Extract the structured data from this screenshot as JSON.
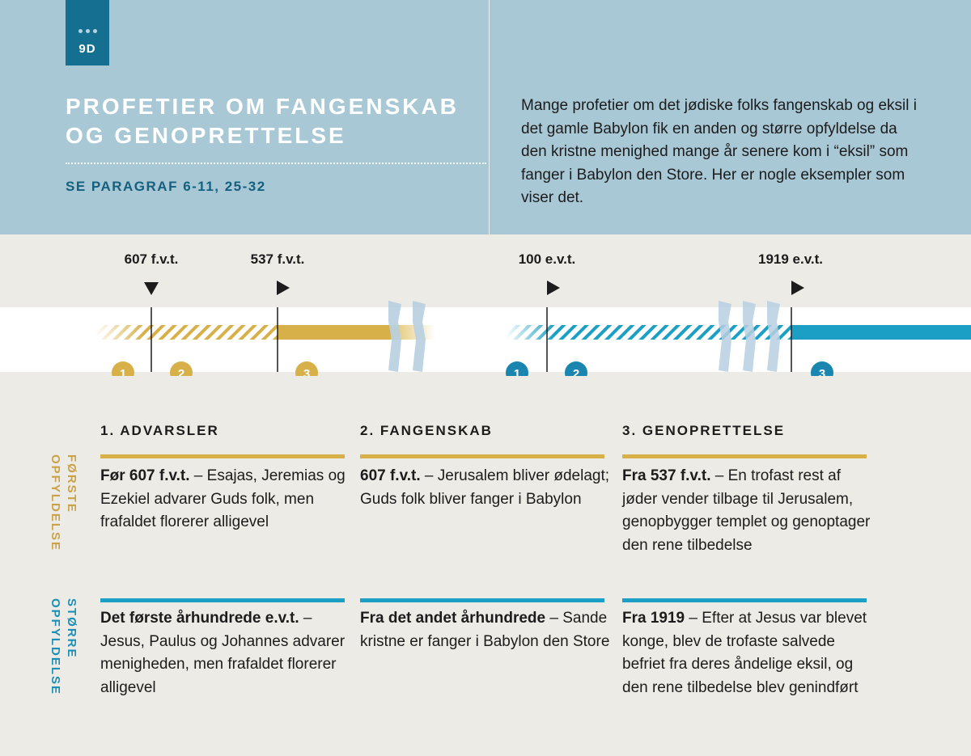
{
  "tag": {
    "label": "9D"
  },
  "title": "PROFETIER OM FANGENSKAB OG GENOPRETTELSE",
  "subtitle": "SE PARAGRAF 6-11, 25-32",
  "intro": "Mange profetier om det jødiske folks fangenskab og eksil i det gamle Babylon fik en anden og større opfyldelse da den kristne menighed mange år senere kom i “eksil” som fanger i Babylon den Store. Her er nogle eksempler som viser det.",
  "colors": {
    "gold": "#d8b04a",
    "blue": "#1c9fc4",
    "header_bg": "#a9c8d6",
    "tag_bg": "#146f91"
  },
  "timeline": {
    "dates": [
      "607 f.v.t.",
      "537 f.v.t.",
      "100 e.v.t.",
      "1919 e.v.t."
    ],
    "markers_first": [
      "1",
      "2",
      "3"
    ],
    "markers_second": [
      "1",
      "2",
      "3"
    ]
  },
  "columns": [
    "1. ADVARSLER",
    "2. FANGENSKAB",
    "3. GENOPRETTELSE"
  ],
  "rows": [
    {
      "label": "FØRSTE OPFYLDELSE",
      "cells": [
        {
          "bold": "Før 607 f.v.t.",
          "text": " – Esajas, Jeremias og Ezekiel advarer Guds folk, men frafaldet florerer alligevel"
        },
        {
          "bold": "607 f.v.t.",
          "text": " – Jerusalem bliver ødelagt; Guds folk bliver fanger i Babylon"
        },
        {
          "bold": "Fra 537 f.v.t.",
          "text": " – En trofast rest af jøder vender tilbage til Jerusalem, genopbygger templet og genoptager den rene tilbedelse"
        }
      ]
    },
    {
      "label": "STØRRE OPFYLDELSE",
      "cells": [
        {
          "bold": "Det første århundrede e.v.t.",
          "text": " – Jesus, Paulus og Johannes advarer menigheden, men frafaldet florerer alligevel"
        },
        {
          "bold": "Fra det andet århundrede",
          "text": " – Sande kristne er fanger i Babylon den Store"
        },
        {
          "bold": "Fra 1919",
          "text": " – Efter at Jesus var blevet konge, blev de trofaste salvede befriet fra deres åndelige eksil, og den rene tilbedelse blev genindført"
        }
      ]
    }
  ]
}
